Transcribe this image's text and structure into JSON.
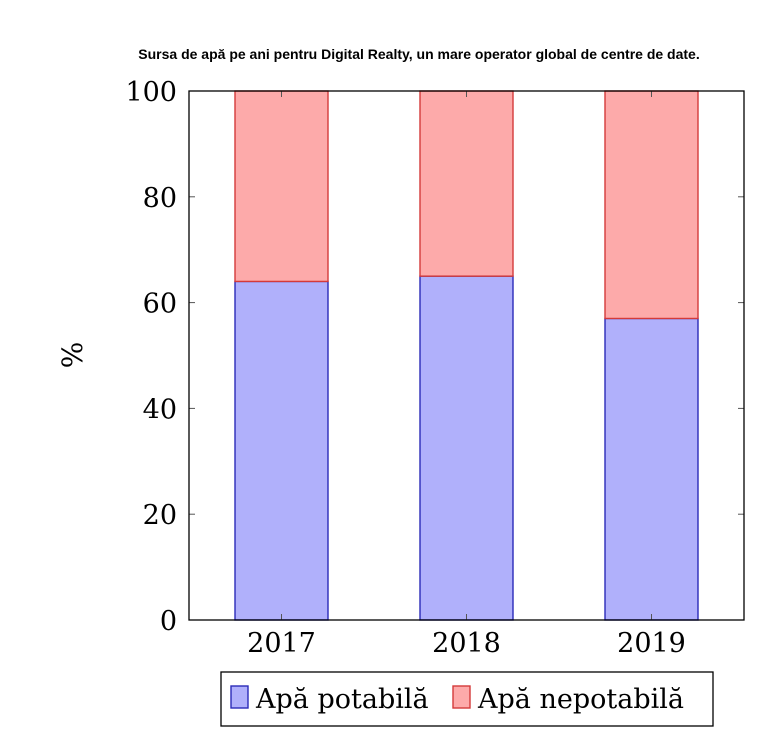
{
  "chart_data": {
    "type": "bar",
    "stacked": true,
    "title": "Sursa de apă pe ani pentru Digital Realty, un mare operator global de centre de date.",
    "ylabel": "%",
    "xlabel": "",
    "categories": [
      "2017",
      "2018",
      "2019"
    ],
    "ylim": [
      0,
      100
    ],
    "yticks": [
      0,
      20,
      40,
      60,
      80,
      100
    ],
    "series": [
      {
        "name": "Apă potabilă",
        "values": [
          64,
          65,
          57
        ],
        "color": "#b0b0fb",
        "stroke": "#2b2bb8"
      },
      {
        "name": "Apă nepotabilă",
        "values": [
          36,
          35,
          43
        ],
        "color": "#fdaaaa",
        "stroke": "#d43a3a"
      }
    ],
    "legend_position": "bottom"
  }
}
